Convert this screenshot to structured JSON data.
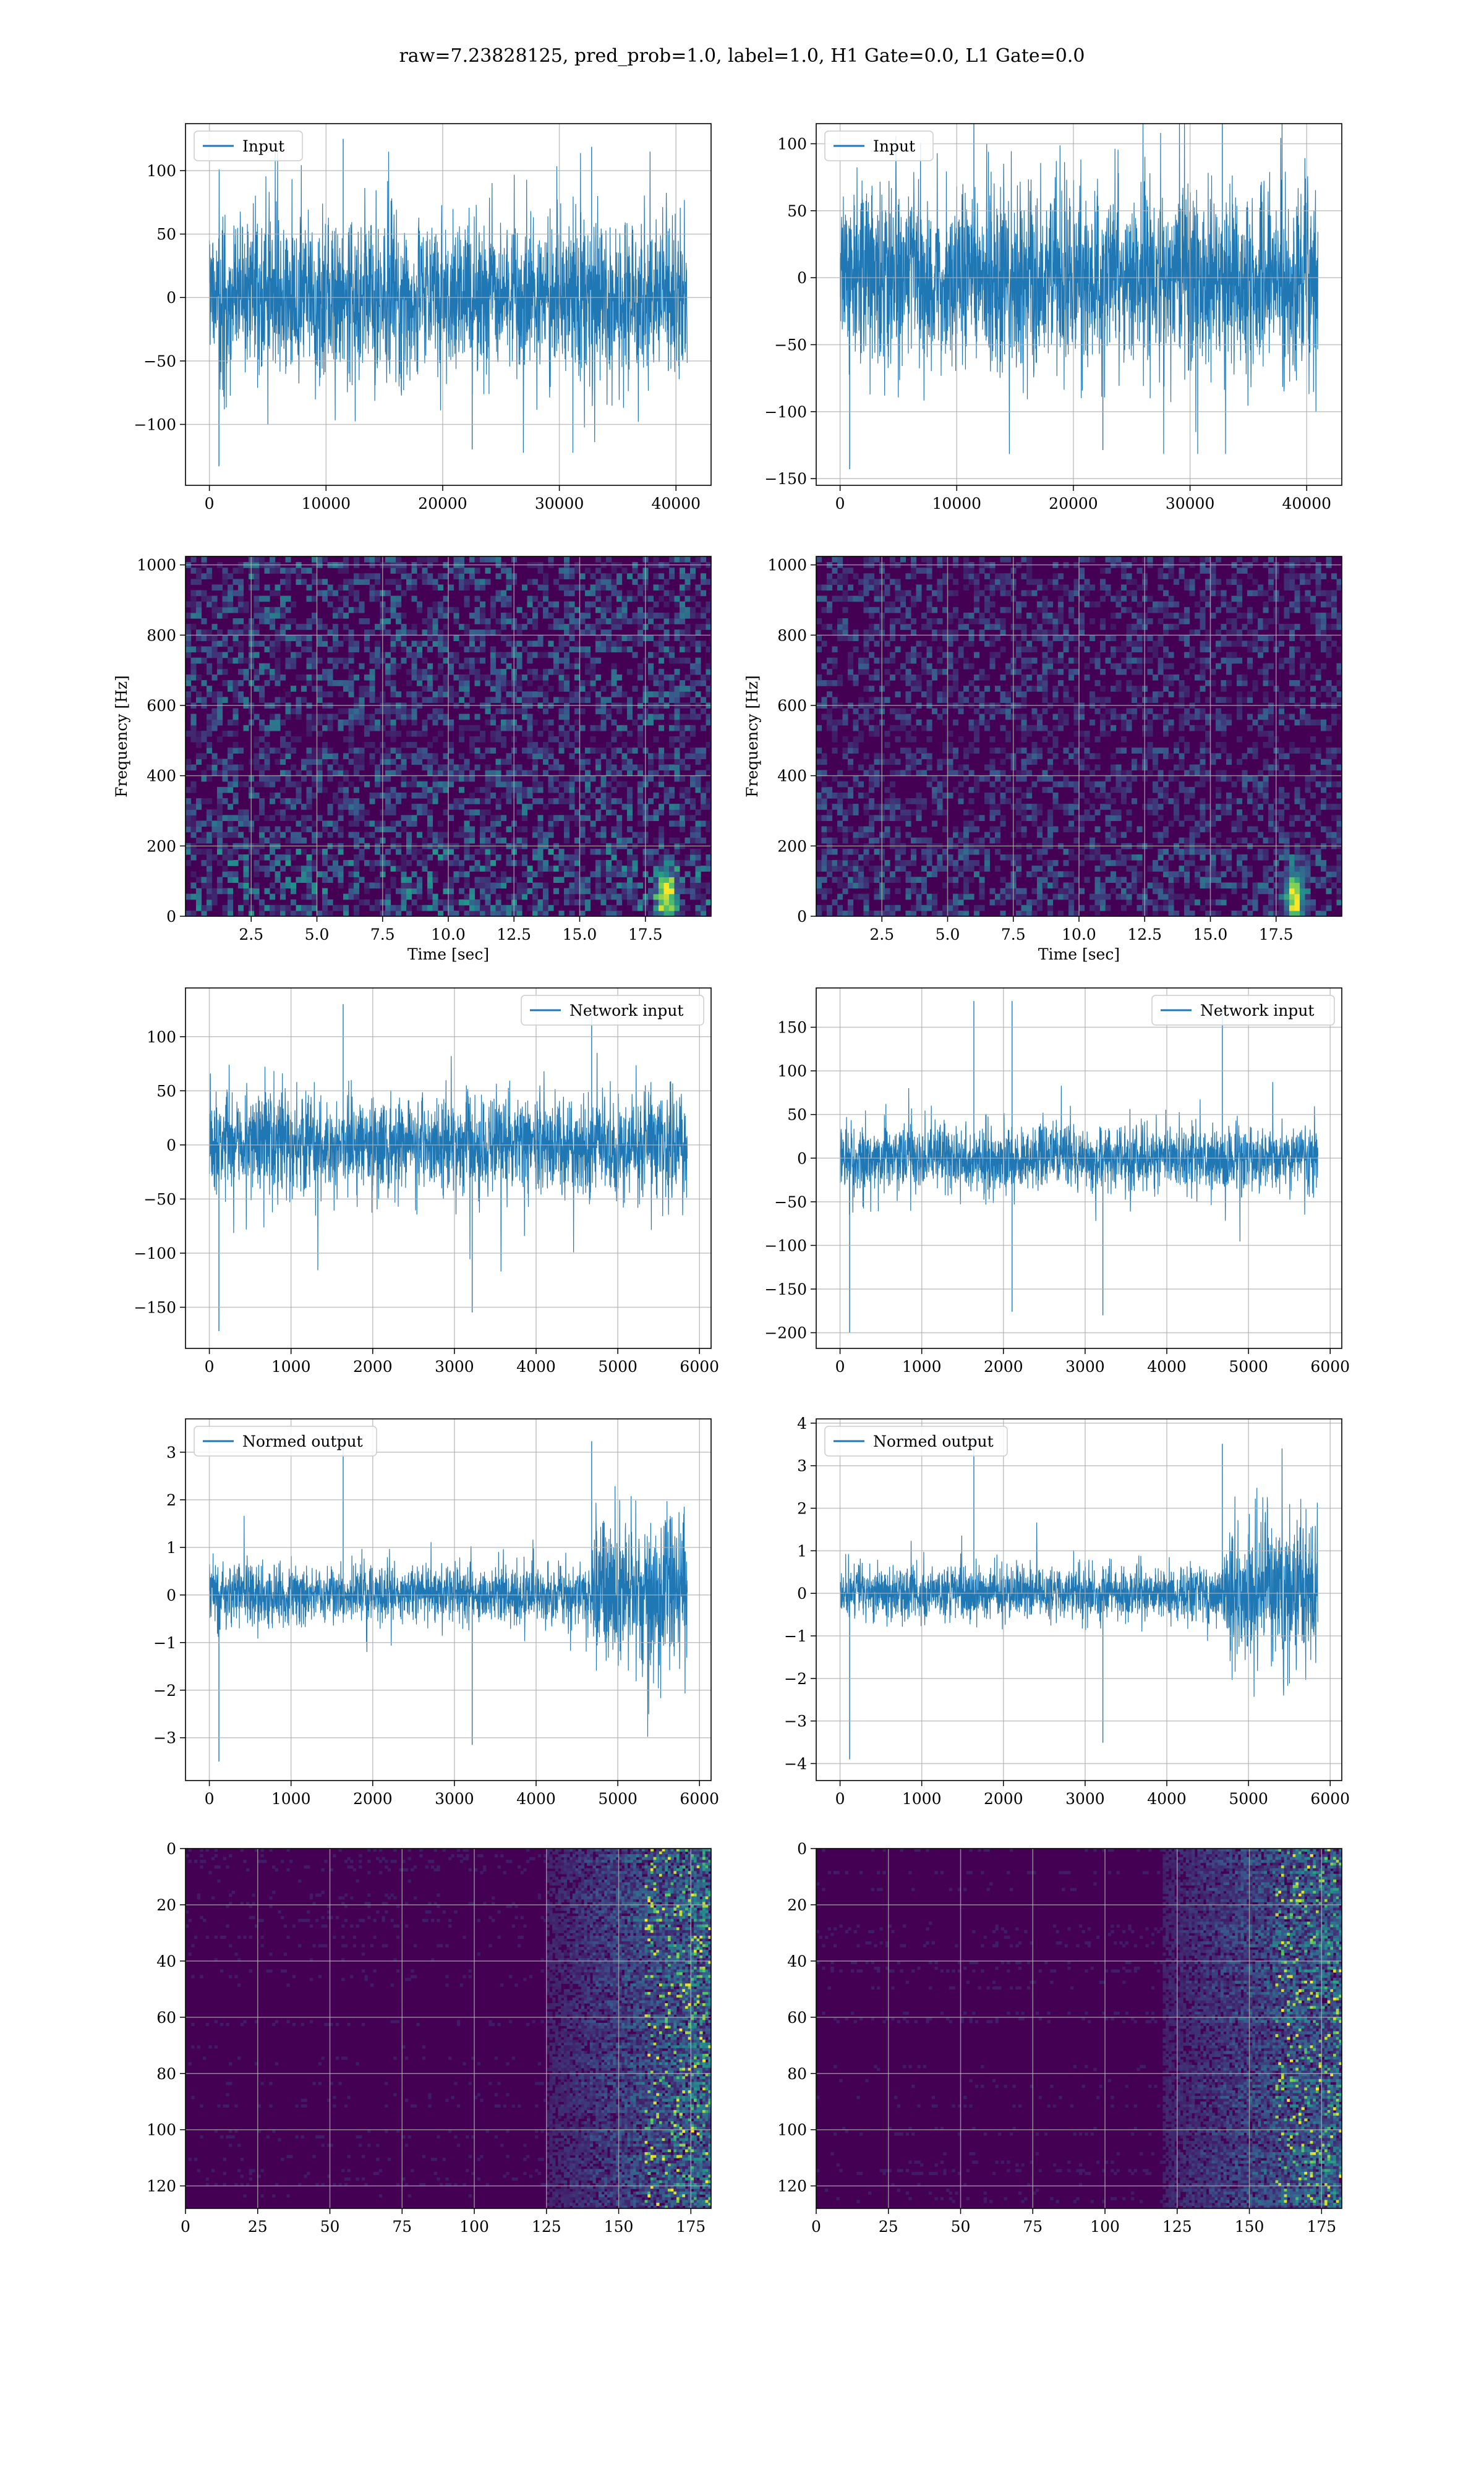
{
  "figure": {
    "title": "raw=7.23828125, pred_prob=1.0, label=1.0, H1 Gate=0.0, L1 Gate=0.0"
  },
  "colors": {
    "line": "#1f77b4",
    "grid": "#b0b0b0",
    "viridis_low": "#440154",
    "viridis_mid": "#21918c",
    "viridis_high": "#fde725"
  },
  "chart_data": [
    {
      "type": "line",
      "id": "r0c0",
      "legend": "Input",
      "legend_loc": "upper left",
      "x_range": [
        0,
        40960
      ],
      "xlim": [
        -2048,
        43008
      ],
      "ylim": [
        -148,
        137
      ],
      "xticks": [
        0,
        10000,
        20000,
        30000,
        40000
      ],
      "yticks": [
        -100,
        -50,
        0,
        50,
        100
      ],
      "envelope": {
        "core_lo": -62,
        "core_hi": 62,
        "spike_lo": -133,
        "spike_hi": 125
      },
      "xlabel": "",
      "ylabel": "",
      "grid": true
    },
    {
      "type": "line",
      "id": "r0c1",
      "legend": "Input",
      "legend_loc": "upper left",
      "x_range": [
        0,
        40960
      ],
      "xlim": [
        -2048,
        43008
      ],
      "ylim": [
        -155,
        115
      ],
      "xticks": [
        0,
        10000,
        20000,
        30000,
        40000
      ],
      "yticks": [
        -150,
        -100,
        -50,
        0,
        50,
        100
      ],
      "envelope": {
        "core_lo": -70,
        "core_hi": 62,
        "spike_lo": -143,
        "spike_hi": 133
      },
      "xlabel": "",
      "ylabel": "",
      "grid": true
    },
    {
      "type": "heatmap",
      "id": "r1c0",
      "xlim": [
        0,
        20
      ],
      "ylim": [
        0,
        1024
      ],
      "xticks": [
        2.5,
        5.0,
        7.5,
        10.0,
        12.5,
        15.0,
        17.5
      ],
      "yticks": [
        0,
        200,
        400,
        600,
        800,
        1000
      ],
      "xlabel": "Time [sec]",
      "ylabel": "Frequency [Hz]",
      "hotspot": {
        "x": 18.3,
        "y": 60
      },
      "grid": true
    },
    {
      "type": "heatmap",
      "id": "r1c1",
      "xlim": [
        0,
        20
      ],
      "ylim": [
        0,
        1024
      ],
      "xticks": [
        2.5,
        5.0,
        7.5,
        10.0,
        12.5,
        15.0,
        17.5
      ],
      "yticks": [
        0,
        200,
        400,
        600,
        800,
        1000
      ],
      "xlabel": "Time [sec]",
      "ylabel": "Frequency [Hz]",
      "hotspot": {
        "x": 18.2,
        "y": 60
      },
      "grid": true
    },
    {
      "type": "line",
      "id": "r2c0",
      "legend": "Network input",
      "legend_loc": "upper right",
      "x_range": [
        0,
        5850
      ],
      "xlim": [
        -292,
        6142
      ],
      "ylim": [
        -188,
        145
      ],
      "xticks": [
        0,
        1000,
        2000,
        3000,
        4000,
        5000,
        6000
      ],
      "yticks": [
        -150,
        -100,
        -50,
        0,
        50,
        100
      ],
      "envelope": {
        "core_lo": -45,
        "core_hi": 45,
        "spike_lo": -172,
        "spike_hi": 130
      },
      "xlabel": "",
      "ylabel": "",
      "grid": true
    },
    {
      "type": "line",
      "id": "r2c1",
      "legend": "Network input",
      "legend_loc": "upper right",
      "x_range": [
        0,
        5850
      ],
      "xlim": [
        -292,
        6142
      ],
      "ylim": [
        -218,
        195
      ],
      "xticks": [
        0,
        1000,
        2000,
        3000,
        4000,
        5000,
        6000
      ],
      "yticks": [
        -200,
        -150,
        -100,
        -50,
        0,
        50,
        100,
        150
      ],
      "envelope": {
        "core_lo": -35,
        "core_hi": 35,
        "spike_lo": -200,
        "spike_hi": 180
      },
      "xlabel": "",
      "ylabel": "",
      "grid": true
    },
    {
      "type": "line",
      "id": "r3c0",
      "legend": "Normed output",
      "legend_loc": "upper left",
      "x_range": [
        0,
        5850
      ],
      "xlim": [
        -292,
        6142
      ],
      "ylim": [
        -3.9,
        3.7
      ],
      "xticks": [
        0,
        1000,
        2000,
        3000,
        4000,
        5000,
        6000
      ],
      "yticks": [
        -3,
        -2,
        -1,
        0,
        1,
        2,
        3
      ],
      "envelope": {
        "core_lo": -0.6,
        "core_hi": 0.6,
        "spike_lo": -3.5,
        "spike_hi": 3.4,
        "burst_start": 4700,
        "burst_amp": 2.6
      },
      "xlabel": "",
      "ylabel": "",
      "grid": true
    },
    {
      "type": "line",
      "id": "r3c1",
      "legend": "Normed output",
      "legend_loc": "upper left",
      "x_range": [
        0,
        5850
      ],
      "xlim": [
        -292,
        6142
      ],
      "ylim": [
        -4.4,
        4.1
      ],
      "xticks": [
        0,
        1000,
        2000,
        3000,
        4000,
        5000,
        6000
      ],
      "yticks": [
        -4,
        -3,
        -2,
        -1,
        0,
        1,
        2,
        3,
        4
      ],
      "envelope": {
        "core_lo": -0.6,
        "core_hi": 0.6,
        "spike_lo": -3.9,
        "spike_hi": 3.7,
        "burst_start": 4700,
        "burst_amp": 2.8
      },
      "xlabel": "",
      "ylabel": "",
      "grid": true
    },
    {
      "type": "heatmap",
      "id": "r4c0",
      "xlim": [
        0,
        182
      ],
      "ylim": [
        128,
        0
      ],
      "xticks": [
        0,
        25,
        50,
        75,
        100,
        125,
        150,
        175
      ],
      "yticks": [
        0,
        20,
        40,
        60,
        80,
        100,
        120
      ],
      "xlabel": "",
      "ylabel": "",
      "activity_start": 125,
      "grid": true
    },
    {
      "type": "heatmap",
      "id": "r4c1",
      "xlim": [
        0,
        182
      ],
      "ylim": [
        128,
        0
      ],
      "xticks": [
        0,
        25,
        50,
        75,
        100,
        125,
        150,
        175
      ],
      "yticks": [
        0,
        20,
        40,
        60,
        80,
        100,
        120
      ],
      "xlabel": "",
      "ylabel": "",
      "activity_start": 120,
      "grid": true
    }
  ]
}
